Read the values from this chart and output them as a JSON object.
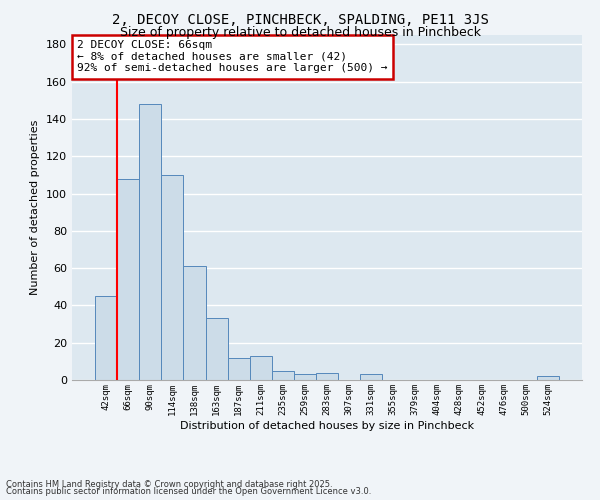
{
  "title1": "2, DECOY CLOSE, PINCHBECK, SPALDING, PE11 3JS",
  "title2": "Size of property relative to detached houses in Pinchbeck",
  "xlabel": "Distribution of detached houses by size in Pinchbeck",
  "ylabel": "Number of detached properties",
  "categories": [
    "42sqm",
    "66sqm",
    "90sqm",
    "114sqm",
    "138sqm",
    "163sqm",
    "187sqm",
    "211sqm",
    "235sqm",
    "259sqm",
    "283sqm",
    "307sqm",
    "331sqm",
    "355sqm",
    "379sqm",
    "404sqm",
    "428sqm",
    "452sqm",
    "476sqm",
    "500sqm",
    "524sqm"
  ],
  "values": [
    45,
    108,
    148,
    110,
    61,
    33,
    12,
    13,
    5,
    3,
    4,
    0,
    3,
    0,
    0,
    0,
    0,
    0,
    0,
    0,
    2
  ],
  "bar_color": "#ccdce8",
  "bar_edge_color": "#5588bb",
  "red_line_index": 1,
  "annotation_line1": "2 DECOY CLOSE: 66sqm",
  "annotation_line2": "← 8% of detached houses are smaller (42)",
  "annotation_line3": "92% of semi-detached houses are larger (500) →",
  "annotation_box_color": "#ffffff",
  "annotation_box_edge_color": "#cc0000",
  "footer1": "Contains HM Land Registry data © Crown copyright and database right 2025.",
  "footer2": "Contains public sector information licensed under the Open Government Licence v3.0.",
  "ylim": [
    0,
    185
  ],
  "yticks": [
    0,
    20,
    40,
    60,
    80,
    100,
    120,
    140,
    160,
    180
  ],
  "bg_color": "#dde8f0",
  "grid_color": "#ffffff",
  "fig_bg_color": "#f0f4f8",
  "title1_fontsize": 10,
  "title2_fontsize": 9,
  "annotation_fontsize": 8
}
